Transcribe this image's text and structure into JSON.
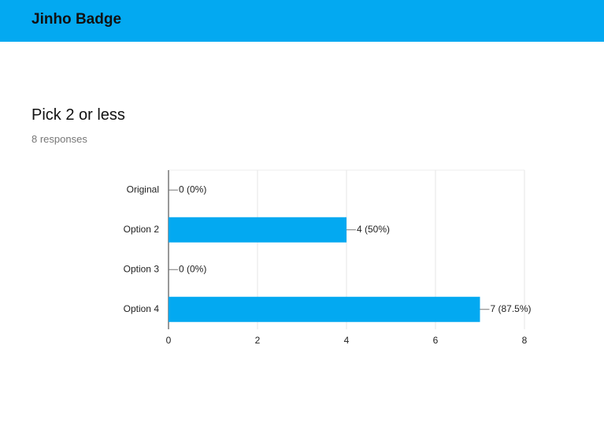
{
  "header": {
    "title": "Jinho Badge"
  },
  "question": {
    "title": "Pick 2 or less",
    "responses": "8 responses"
  },
  "chart_data": {
    "type": "bar",
    "orientation": "horizontal",
    "categories": [
      "Original",
      "Option 2",
      "Option 3",
      "Option 4"
    ],
    "values": [
      0,
      4,
      0,
      7
    ],
    "value_labels": [
      "0 (0%)",
      "4 (50%)",
      "0 (0%)",
      "7 (87.5%)"
    ],
    "color": "#03a9f1",
    "xlim": [
      0,
      8
    ],
    "xticks": [
      0,
      2,
      4,
      6,
      8
    ],
    "grid": true
  }
}
